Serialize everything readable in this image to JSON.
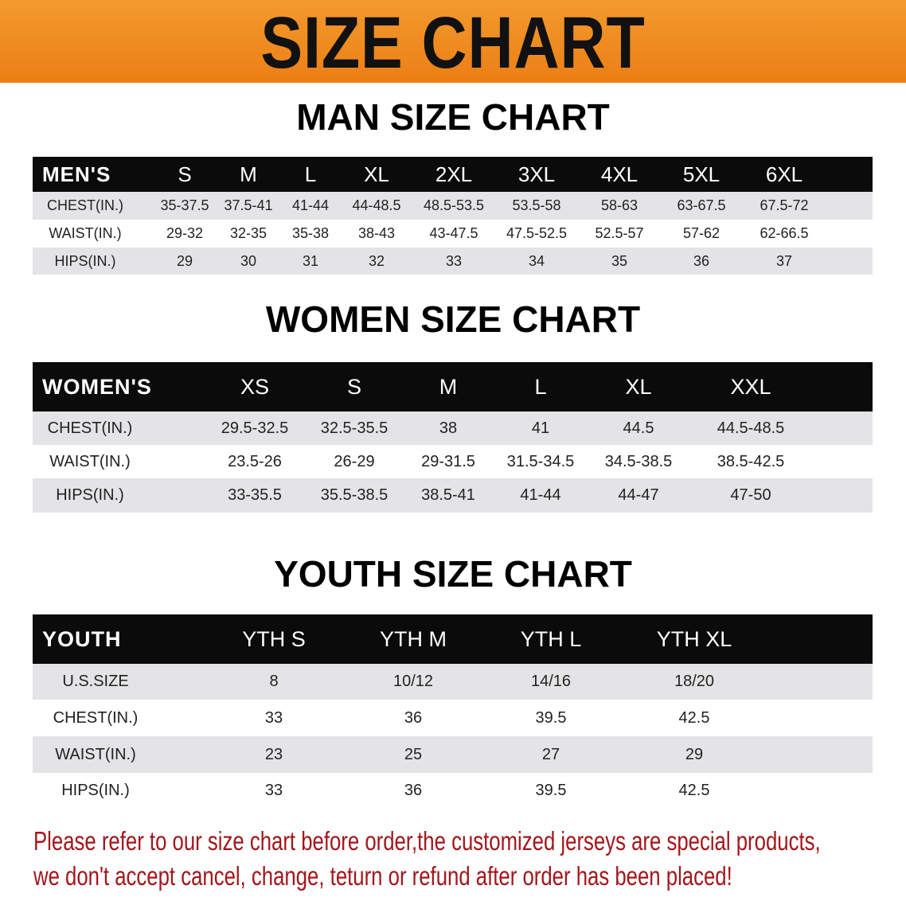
{
  "banner_title": "SIZE CHART",
  "men": {
    "title": "MAN SIZE CHART",
    "header": [
      "MEN'S",
      "S",
      "M",
      "L",
      "XL",
      "2XL",
      "3XL",
      "4XL",
      "5XL",
      "6XL"
    ],
    "rows": [
      [
        "CHEST(IN.)",
        "35-37.5",
        "37.5-41",
        "41-44",
        "44-48.5",
        "48.5-53.5",
        "53.5-58",
        "58-63",
        "63-67.5",
        "67.5-72"
      ],
      [
        "WAIST(IN.)",
        "29-32",
        "32-35",
        "35-38",
        "38-43",
        "43-47.5",
        "47.5-52.5",
        "52.5-57",
        "57-62",
        "62-66.5"
      ],
      [
        "HIPS(IN.)",
        "29",
        "30",
        "31",
        "32",
        "33",
        "34",
        "35",
        "36",
        "37"
      ]
    ]
  },
  "women": {
    "title": "WOMEN SIZE CHART",
    "header": [
      "WOMEN'S",
      "XS",
      "S",
      "M",
      "L",
      "XL",
      "XXL"
    ],
    "rows": [
      [
        "CHEST(IN.)",
        "29.5-32.5",
        "32.5-35.5",
        "38",
        "41",
        "44.5",
        "44.5-48.5"
      ],
      [
        "WAIST(IN.)",
        "23.5-26",
        "26-29",
        "29-31.5",
        "31.5-34.5",
        "34.5-38.5",
        "38.5-42.5"
      ],
      [
        "HIPS(IN.)",
        "33-35.5",
        "35.5-38.5",
        "38.5-41",
        "41-44",
        "44-47",
        "47-50"
      ]
    ]
  },
  "youth": {
    "title": "YOUTH SIZE CHART",
    "header": [
      "YOUTH",
      "YTH S",
      "YTH M",
      "YTH L",
      "YTH XL"
    ],
    "rows": [
      [
        "U.S.SIZE",
        "8",
        "10/12",
        "14/16",
        "18/20"
      ],
      [
        "CHEST(IN.)",
        "33",
        "36",
        "39.5",
        "42.5"
      ],
      [
        "WAIST(IN.)",
        "23",
        "25",
        "27",
        "29"
      ],
      [
        "HIPS(IN.)",
        "33",
        "36",
        "39.5",
        "42.5"
      ]
    ]
  },
  "notice": {
    "line1": "Please refer to our size chart before order,the customized jerseys are special products,",
    "line2": "we don't accept cancel, change, teturn or refund after order has been placed!"
  },
  "colors": {
    "banner": "#ef8a1f",
    "header_row": "#0b0b0b",
    "stripe": "#e4e4e6",
    "notice": "#a3161b"
  }
}
